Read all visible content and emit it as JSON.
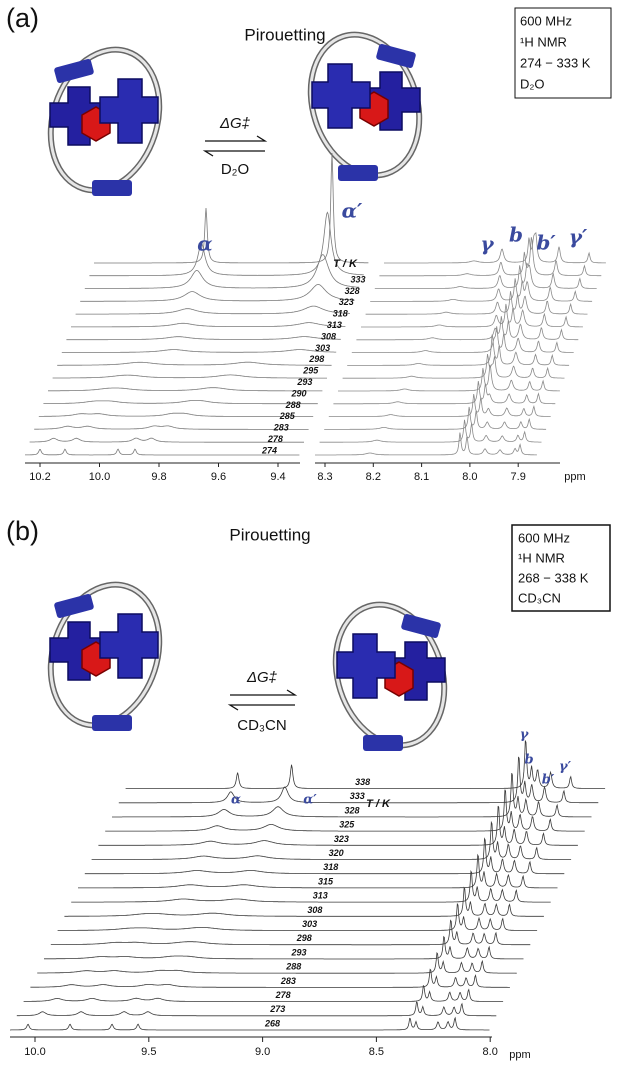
{
  "panel_a": {
    "label": "(a)",
    "title": "Pirouetting",
    "info": [
      "600 MHz",
      "¹H NMR",
      "274 − 333 K",
      "D₂O"
    ],
    "equilibrium": {
      "energy": "ΔG‡",
      "solvent": "D₂O"
    },
    "peak_labels": [
      "α",
      "α′",
      "γ",
      "b",
      "b′",
      "γ′"
    ],
    "temperature_header": "T / K",
    "temperatures": [
      "333",
      "328",
      "323",
      "318",
      "313",
      "308",
      "303",
      "298",
      "295",
      "293",
      "290",
      "288",
      "285",
      "283",
      "278",
      "274"
    ],
    "axis_left_ticks": [
      "10.2",
      "10.0",
      "9.8",
      "9.6",
      "9.4"
    ],
    "axis_right_ticks": [
      "8.3",
      "8.2",
      "8.1",
      "8.0",
      "7.9"
    ],
    "axis_unit": "ppm"
  },
  "panel_b": {
    "label": "(b)",
    "title": "Pirouetting",
    "info": [
      "600 MHz",
      "¹H NMR",
      "268 − 338 K",
      "CD₃CN"
    ],
    "equilibrium": {
      "energy": "ΔG‡",
      "solvent": "CD₃CN"
    },
    "peak_labels": [
      "α",
      "α′",
      "γ",
      "b",
      "b′",
      "γ′"
    ],
    "temperature_header": "T / K",
    "temperatures": [
      "338",
      "333",
      "328",
      "325",
      "323",
      "320",
      "318",
      "315",
      "313",
      "308",
      "303",
      "298",
      "293",
      "288",
      "283",
      "278",
      "273",
      "268"
    ],
    "axis_ticks": [
      "10.0",
      "9.5",
      "9.0",
      "8.5",
      "8.0"
    ],
    "axis_unit": "ppm"
  }
}
